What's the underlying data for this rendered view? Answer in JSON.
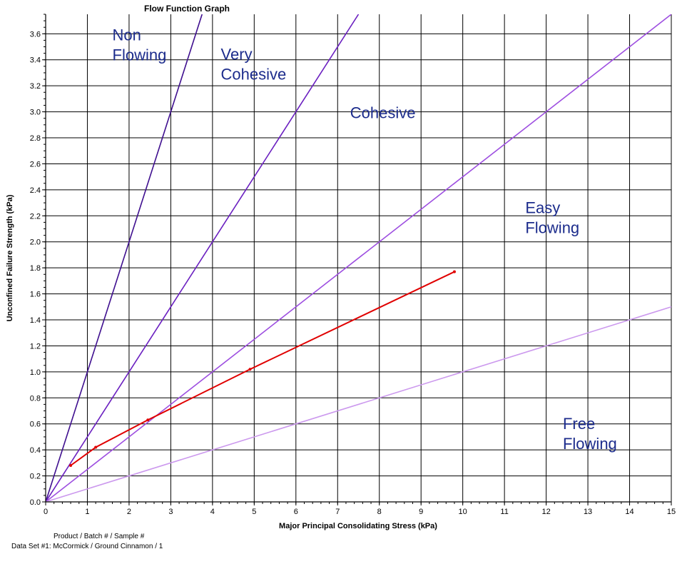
{
  "chart_data": {
    "type": "line",
    "title": "Flow Function Graph",
    "xlabel": "Major Principal Consolidating Stress (kPa)",
    "ylabel": "Unconfined Failure Strength (kPa)",
    "xlim": [
      0,
      15
    ],
    "ylim": [
      0,
      3.75
    ],
    "x_ticks": [
      "0",
      "1",
      "2",
      "3",
      "4",
      "5",
      "6",
      "7",
      "8",
      "9",
      "10",
      "11",
      "12",
      "13",
      "14",
      "15"
    ],
    "y_ticks": [
      "0.0",
      "0.2",
      "0.4",
      "0.6",
      "0.8",
      "1.0",
      "1.2",
      "1.4",
      "1.6",
      "1.8",
      "2.0",
      "2.2",
      "2.4",
      "2.6",
      "2.8",
      "3.0",
      "3.2",
      "3.4",
      "3.6"
    ],
    "grid": true,
    "boundary_lines": [
      {
        "slope": 1.0,
        "color": "#3f0f8f"
      },
      {
        "slope": 0.5,
        "color": "#6a1fc0"
      },
      {
        "slope": 0.25,
        "color": "#9d4ee0"
      },
      {
        "slope": 0.1,
        "color": "#cc99ee"
      }
    ],
    "regions": [
      {
        "label": "Non\nFlowing",
        "x": 1.6,
        "y": 3.55
      },
      {
        "label": "Very\nCohesive",
        "x": 4.2,
        "y": 3.4
      },
      {
        "label": "Cohesive",
        "x": 7.3,
        "y": 2.95
      },
      {
        "label": "Easy\nFlowing",
        "x": 11.5,
        "y": 2.22
      },
      {
        "label": "Free\nFlowing",
        "x": 12.4,
        "y": 0.56
      }
    ],
    "series": [
      {
        "color": "#e00000",
        "x": [
          0.6,
          1.2,
          2.45,
          4.9,
          9.8
        ],
        "y": [
          0.28,
          0.42,
          0.63,
          1.02,
          1.77
        ]
      }
    ]
  },
  "footer": {
    "line1": "Product / Batch # / Sample #",
    "line2": "Data Set #1: McCormick / Ground Cinnamon / 1"
  }
}
